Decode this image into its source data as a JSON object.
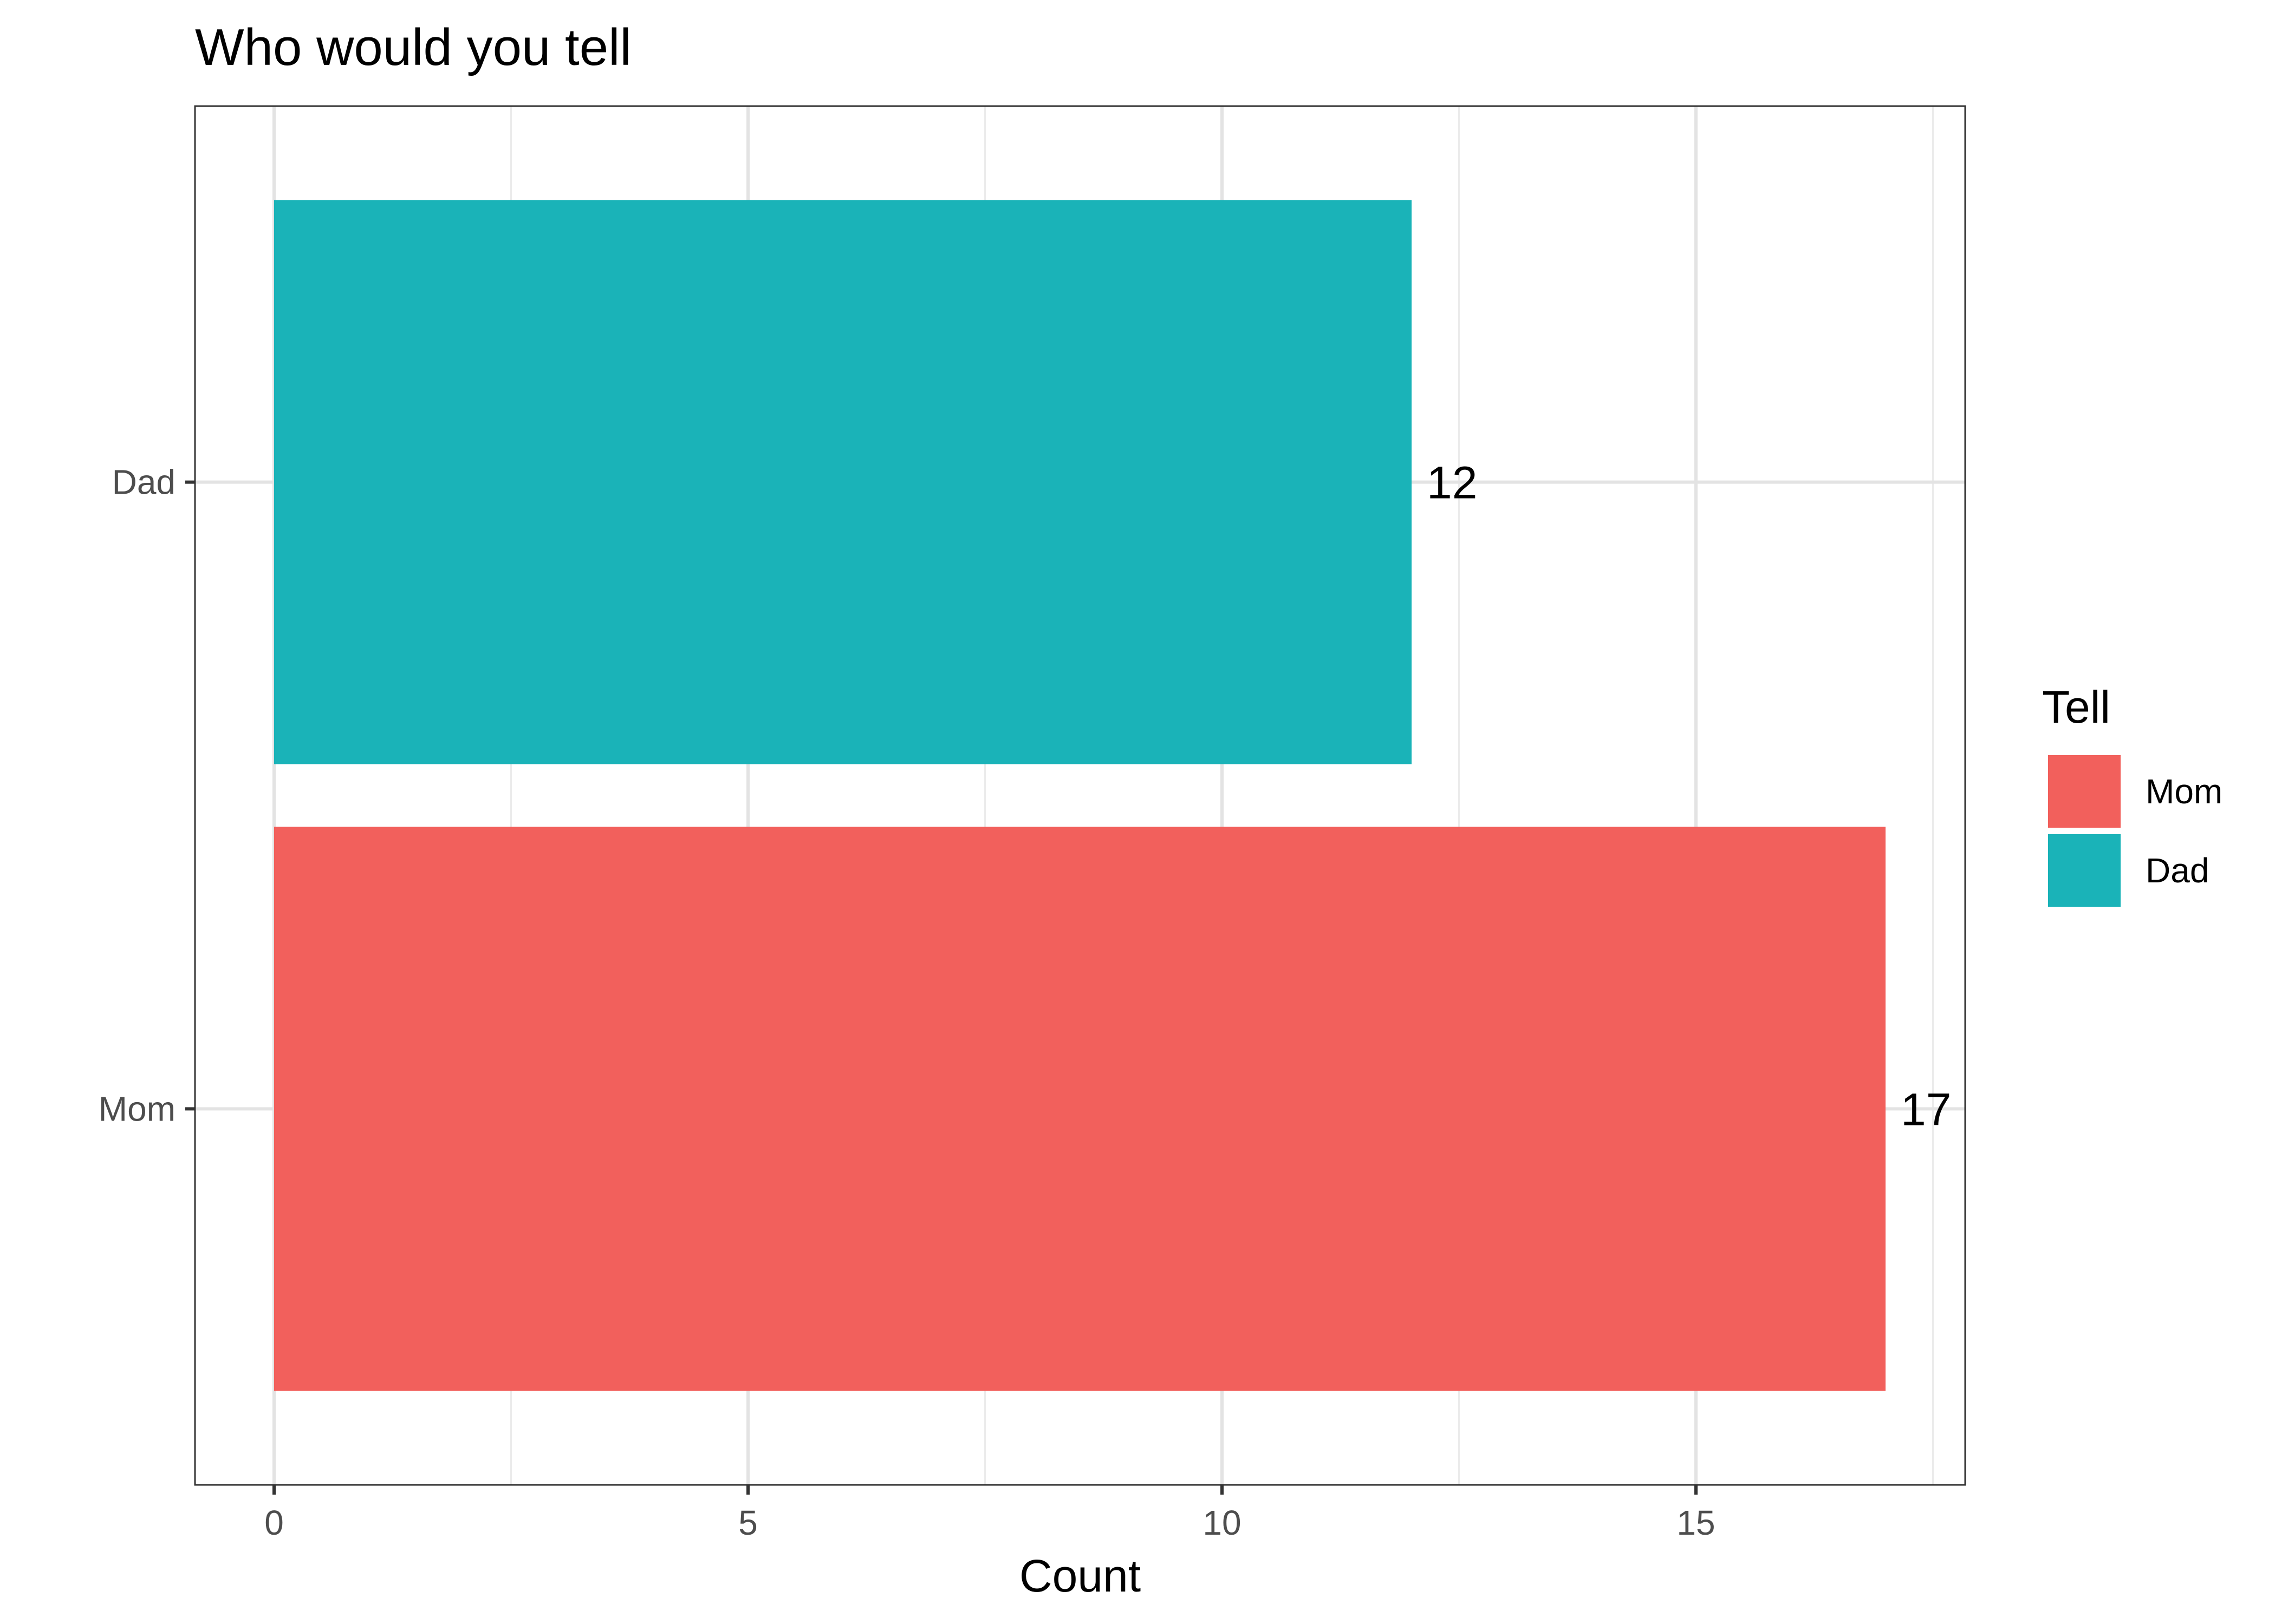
{
  "chart_data": {
    "type": "bar",
    "orientation": "horizontal",
    "title": "Who would you tell",
    "xlabel": "Count",
    "ylabel": "",
    "categories": [
      "Mom",
      "Dad"
    ],
    "values": [
      17,
      12
    ],
    "colors": [
      "#F2605C",
      "#1AB3B8"
    ],
    "data_labels": [
      "17",
      "12"
    ],
    "xlim": [
      0,
      17.85
    ],
    "x_ticks": [
      0,
      5,
      10,
      15
    ],
    "x_tick_labels": [
      "0",
      "5",
      "10",
      "15"
    ],
    "grid": true,
    "legend": {
      "title": "Tell",
      "position": "right",
      "entries": [
        {
          "label": "Mom",
          "color": "#F2605C"
        },
        {
          "label": "Dad",
          "color": "#1AB3B8"
        }
      ]
    }
  }
}
